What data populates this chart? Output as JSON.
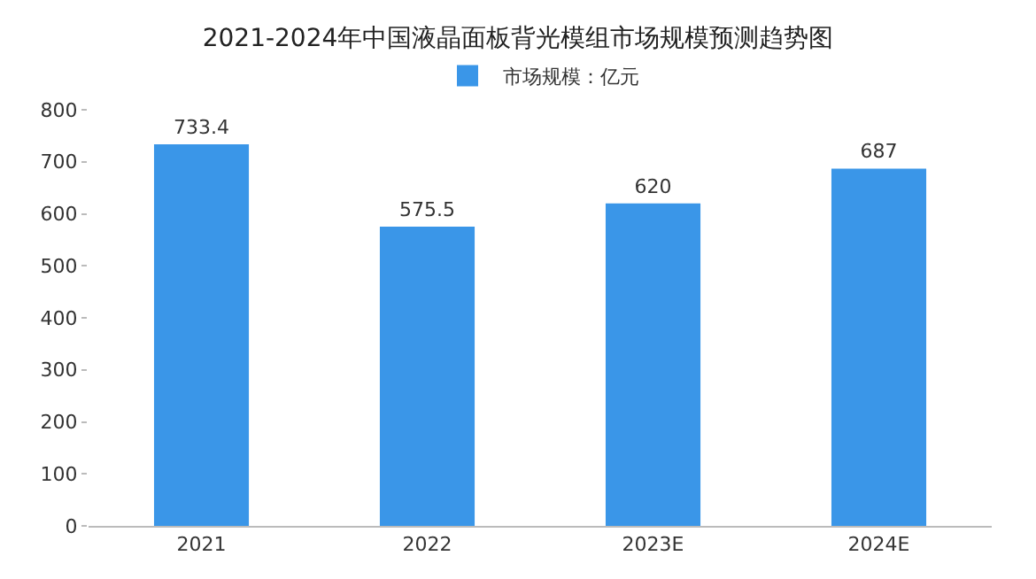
{
  "chart_data": {
    "type": "bar",
    "title": "2021-2024年中国液晶面板背光模组市场规模预测趋势图",
    "categories": [
      "2021",
      "2022",
      "2023E",
      "2024E"
    ],
    "series": [
      {
        "name": "市场规模：亿元",
        "color": "#3a96e8",
        "values": [
          733.4,
          575.5,
          620,
          687
        ]
      }
    ],
    "ylim": [
      0,
      800
    ],
    "yticks": [
      0,
      100,
      200,
      300,
      400,
      500,
      600,
      700,
      800
    ],
    "data_labels": true,
    "grid": false,
    "legend": "top"
  }
}
